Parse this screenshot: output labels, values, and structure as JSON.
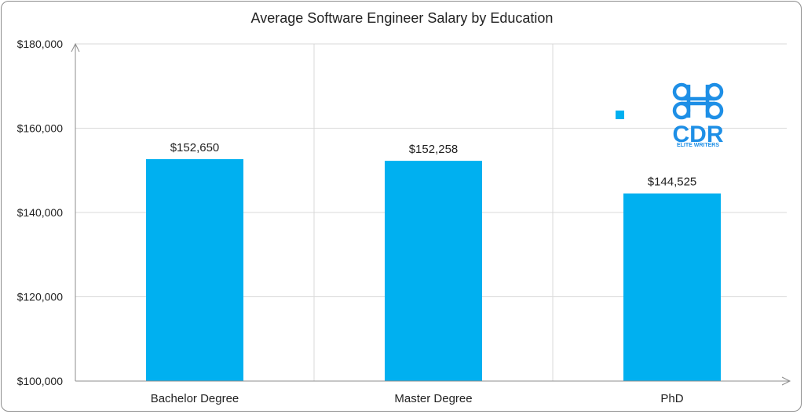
{
  "chart_data": {
    "type": "bar",
    "title": "Average Software Engineer Salary by Education",
    "categories": [
      "Bachelor Degree",
      "Master Degree",
      "PhD"
    ],
    "values": [
      152650,
      152258,
      144525
    ],
    "data_labels": [
      "$152,650",
      "$152,258",
      "$144,525"
    ],
    "ylim": [
      100000,
      180000
    ],
    "y_ticks": [
      100000,
      120000,
      140000,
      160000,
      180000
    ],
    "y_tick_labels": [
      "$100,000",
      "$120,000",
      "$140,000",
      "$160,000",
      "$180,000"
    ],
    "xlabel": "",
    "ylabel": "",
    "grid": true,
    "bar_color": "#00b0f0",
    "grid_color": "#d9d9d9"
  },
  "logo": {
    "mark": "CDR",
    "tagline": "ELITE WRITERS",
    "color": "#1e8fe6"
  }
}
